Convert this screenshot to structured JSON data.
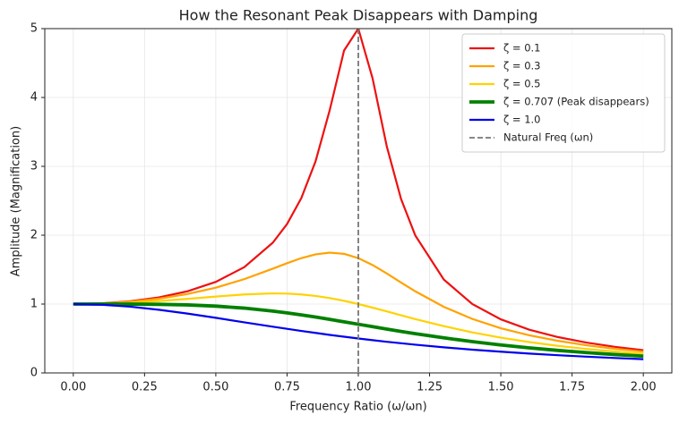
{
  "chart_data": {
    "type": "line",
    "title": "How the Resonant Peak Disappears with Damping",
    "xlabel": "Frequency Ratio (ω/ωn)",
    "ylabel": "Amplitude (Magnification)",
    "x": [
      0,
      0.1,
      0.2,
      0.3,
      0.4,
      0.5,
      0.6,
      0.7,
      0.75,
      0.8,
      0.85,
      0.9,
      0.95,
      1.0,
      1.05,
      1.1,
      1.15,
      1.2,
      1.3,
      1.4,
      1.5,
      1.6,
      1.7,
      1.8,
      1.9,
      2.0
    ],
    "series": [
      {
        "name": "ζ = 0.1",
        "color": "#ee1111",
        "linewidth": 2.2,
        "values": [
          1,
          1.01,
          1.041,
          1.097,
          1.185,
          1.322,
          1.536,
          1.891,
          2.162,
          2.538,
          3.073,
          3.821,
          4.682,
          5,
          4.279,
          3.288,
          2.525,
          1.995,
          1.356,
          1.0,
          0.778,
          0.628,
          0.521,
          0.441,
          0.379,
          0.33
        ]
      },
      {
        "name": "ζ = 0.3",
        "color": "#ffa200",
        "linewidth": 2.2,
        "values": [
          1,
          1.008,
          1.034,
          1.078,
          1.145,
          1.238,
          1.362,
          1.514,
          1.593,
          1.667,
          1.722,
          1.747,
          1.729,
          1.667,
          1.567,
          1.444,
          1.313,
          1.185,
          0.96,
          0.784,
          0.649,
          0.546,
          0.466,
          0.402,
          0.351,
          0.309
        ]
      },
      {
        "name": "ζ = 0.5",
        "color": "#ffd200",
        "linewidth": 2.2,
        "values": [
          1,
          1.005,
          1.02,
          1.044,
          1.075,
          1.109,
          1.14,
          1.155,
          1.152,
          1.14,
          1.118,
          1.087,
          1.047,
          1,
          0.948,
          0.893,
          0.837,
          0.782,
          0.679,
          0.589,
          0.512,
          0.448,
          0.393,
          0.348,
          0.31,
          0.277
        ]
      },
      {
        "name": "ζ = 0.707 (Peak disappears)",
        "color": "#008000",
        "linewidth": 3.8,
        "values": [
          1,
          1.0,
          0.999,
          0.996,
          0.988,
          0.97,
          0.941,
          0.898,
          0.872,
          0.842,
          0.811,
          0.777,
          0.742,
          0.707,
          0.672,
          0.637,
          0.603,
          0.57,
          0.509,
          0.454,
          0.406,
          0.364,
          0.327,
          0.295,
          0.267,
          0.243
        ]
      },
      {
        "name": "ζ = 1.0",
        "color": "#0000ee",
        "linewidth": 2.2,
        "values": [
          1,
          0.99,
          0.962,
          0.917,
          0.862,
          0.8,
          0.735,
          0.671,
          0.64,
          0.61,
          0.581,
          0.552,
          0.526,
          0.5,
          0.476,
          0.452,
          0.431,
          0.41,
          0.372,
          0.338,
          0.308,
          0.281,
          0.257,
          0.236,
          0.217,
          0.2
        ]
      }
    ],
    "vline": {
      "x": 1.0,
      "name": "Natural Freq (ωn)",
      "color": "#777777"
    },
    "xlim": [
      -0.1,
      2.1
    ],
    "ylim": [
      0,
      5
    ],
    "xticks": [
      {
        "value": 0,
        "label": "0.00"
      },
      {
        "value": 0.25,
        "label": "0.25"
      },
      {
        "value": 0.5,
        "label": "0.50"
      },
      {
        "value": 0.75,
        "label": "0.75"
      },
      {
        "value": 1,
        "label": "1.00"
      },
      {
        "value": 1.25,
        "label": "1.25"
      },
      {
        "value": 1.5,
        "label": "1.50"
      },
      {
        "value": 1.75,
        "label": "1.75"
      },
      {
        "value": 2,
        "label": "2.00"
      }
    ],
    "yticks": [
      0,
      1,
      2,
      3,
      4,
      5
    ],
    "grid": true,
    "legend": "upper right"
  }
}
